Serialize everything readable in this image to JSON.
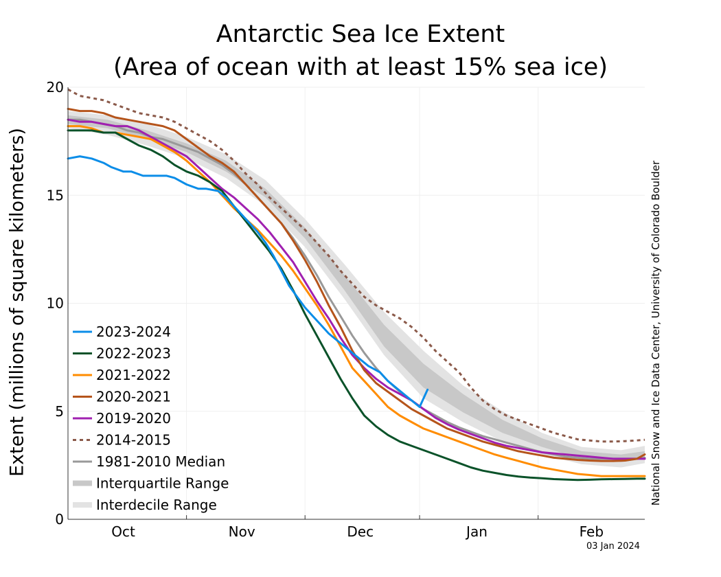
{
  "chart_data": {
    "type": "line",
    "title": "Antarctic Sea Ice Extent",
    "subtitle": "(Area of ocean with at least 15% sea ice)",
    "ylabel": "Extent (millions of square kilometers)",
    "xlabel": "",
    "ylim": [
      0,
      20
    ],
    "yticks": [
      "0",
      "5",
      "10",
      "15",
      "20"
    ],
    "xlim": [
      0,
      146
    ],
    "month_labels": [
      "Oct",
      "Nov",
      "Dec",
      "Jan",
      "Feb"
    ],
    "month_label_x": [
      14,
      44,
      74,
      103.5,
      132.5
    ],
    "month_boundaries": [
      30,
      60,
      89,
      119
    ],
    "grid": true,
    "legend_position": "lower-left",
    "credit": "National Snow and Ice Data Center, University of Colorado Boulder",
    "date": "03 Jan 2024",
    "bands": [
      {
        "name": "Interdecile Range",
        "color": "#e3e3e3",
        "x": [
          0,
          10,
          20,
          30,
          40,
          50,
          60,
          70,
          80,
          90,
          100,
          110,
          120,
          130,
          140,
          146
        ],
        "lower": [
          18.1,
          17.8,
          17.3,
          16.7,
          15.8,
          14.5,
          12.6,
          10.2,
          7.6,
          5.6,
          4.5,
          3.6,
          3.0,
          2.55,
          2.4,
          2.6
        ],
        "upper": [
          18.9,
          18.7,
          18.3,
          17.7,
          16.9,
          15.7,
          13.9,
          11.8,
          9.6,
          7.8,
          6.2,
          5.0,
          4.0,
          3.35,
          3.2,
          3.4
        ]
      },
      {
        "name": "Interquartile Range",
        "color": "#c8c8c8",
        "x": [
          0,
          10,
          20,
          30,
          40,
          50,
          60,
          70,
          80,
          90,
          100,
          110,
          120,
          130,
          140,
          146
        ],
        "lower": [
          18.3,
          18.1,
          17.6,
          17.0,
          16.1,
          14.9,
          13.0,
          10.6,
          8.0,
          6.1,
          4.95,
          4.0,
          3.35,
          2.8,
          2.65,
          2.8
        ],
        "upper": [
          18.7,
          18.5,
          18.0,
          17.4,
          16.6,
          15.3,
          13.5,
          11.3,
          9.0,
          7.2,
          5.8,
          4.6,
          3.75,
          3.15,
          3.0,
          3.15
        ]
      }
    ],
    "series": [
      {
        "name": "2023-2024",
        "color": "#0b8de8",
        "dash": "none",
        "x": [
          0,
          3,
          6,
          9,
          11,
          14,
          16,
          19,
          21,
          23,
          25,
          27,
          30,
          33,
          35,
          38,
          40,
          42,
          44,
          46,
          48,
          50,
          52,
          54,
          56,
          58,
          60,
          62,
          64,
          66,
          68,
          70,
          72,
          74,
          76,
          79,
          81,
          83,
          85,
          87,
          89,
          91
        ],
        "values": [
          16.7,
          16.8,
          16.7,
          16.5,
          16.3,
          16.1,
          16.1,
          15.9,
          15.9,
          15.9,
          15.9,
          15.8,
          15.5,
          15.3,
          15.3,
          15.2,
          14.9,
          14.5,
          14.1,
          13.7,
          13.3,
          12.8,
          12.2,
          11.5,
          10.8,
          10.3,
          9.8,
          9.4,
          9.0,
          8.6,
          8.3,
          8.0,
          7.7,
          7.4,
          7.1,
          6.8,
          6.4,
          6.1,
          5.8,
          5.5,
          5.2,
          6.0
        ]
      },
      {
        "name": "2022-2023",
        "color": "#0a5229",
        "dash": "none",
        "x": [
          0,
          3,
          6,
          9,
          12,
          15,
          18,
          21,
          24,
          27,
          30,
          33,
          36,
          39,
          42,
          45,
          48,
          51,
          54,
          57,
          60,
          63,
          66,
          69,
          72,
          75,
          78,
          81,
          84,
          87,
          90,
          93,
          96,
          99,
          102,
          105,
          108,
          111,
          114,
          117,
          120,
          123,
          126,
          129,
          132,
          135,
          138,
          141,
          144,
          146
        ],
        "values": [
          18.0,
          18.0,
          18.0,
          17.9,
          17.9,
          17.6,
          17.3,
          17.1,
          16.8,
          16.4,
          16.1,
          15.9,
          15.6,
          15.2,
          14.5,
          13.8,
          13.1,
          12.4,
          11.6,
          10.6,
          9.5,
          8.5,
          7.5,
          6.5,
          5.6,
          4.8,
          4.3,
          3.9,
          3.6,
          3.4,
          3.2,
          3.0,
          2.8,
          2.6,
          2.4,
          2.25,
          2.15,
          2.05,
          1.98,
          1.93,
          1.9,
          1.86,
          1.84,
          1.82,
          1.83,
          1.85,
          1.86,
          1.87,
          1.88,
          1.88
        ]
      },
      {
        "name": "2021-2022",
        "color": "#ff8c00",
        "dash": "none",
        "x": [
          0,
          3,
          6,
          9,
          12,
          15,
          18,
          21,
          24,
          27,
          30,
          33,
          36,
          39,
          42,
          45,
          48,
          51,
          54,
          57,
          60,
          63,
          66,
          69,
          72,
          75,
          78,
          81,
          84,
          87,
          90,
          93,
          96,
          99,
          102,
          105,
          108,
          111,
          114,
          117,
          120,
          123,
          126,
          129,
          132,
          135,
          138,
          141,
          144,
          146
        ],
        "values": [
          18.2,
          18.2,
          18.1,
          17.9,
          17.9,
          17.8,
          17.7,
          17.6,
          17.3,
          17.0,
          16.6,
          16.1,
          15.6,
          15.0,
          14.4,
          13.9,
          13.4,
          12.8,
          12.2,
          11.5,
          10.7,
          9.9,
          9.0,
          8.0,
          7.0,
          6.4,
          5.8,
          5.2,
          4.8,
          4.5,
          4.2,
          4.0,
          3.8,
          3.6,
          3.4,
          3.2,
          3.0,
          2.85,
          2.7,
          2.55,
          2.4,
          2.3,
          2.2,
          2.1,
          2.05,
          2.0,
          2.0,
          2.0,
          2.0,
          2.0
        ]
      },
      {
        "name": "2020-2021",
        "color": "#b5541b",
        "dash": "none",
        "x": [
          0,
          3,
          6,
          9,
          12,
          15,
          18,
          21,
          24,
          27,
          30,
          33,
          36,
          39,
          42,
          45,
          48,
          51,
          54,
          57,
          60,
          63,
          66,
          69,
          72,
          75,
          78,
          81,
          84,
          87,
          90,
          93,
          96,
          99,
          102,
          105,
          108,
          111,
          114,
          117,
          120,
          123,
          126,
          129,
          132,
          135,
          138,
          141,
          144,
          146
        ],
        "values": [
          19.0,
          18.9,
          18.9,
          18.8,
          18.6,
          18.5,
          18.4,
          18.3,
          18.2,
          18.0,
          17.6,
          17.2,
          16.8,
          16.5,
          16.1,
          15.5,
          14.9,
          14.3,
          13.7,
          12.9,
          12.0,
          11.0,
          9.9,
          8.9,
          7.8,
          6.9,
          6.3,
          5.9,
          5.5,
          5.1,
          4.8,
          4.5,
          4.2,
          4.0,
          3.8,
          3.6,
          3.45,
          3.3,
          3.15,
          3.05,
          2.95,
          2.85,
          2.8,
          2.75,
          2.72,
          2.7,
          2.7,
          2.72,
          2.8,
          3.0
        ]
      },
      {
        "name": "2019-2020",
        "color": "#a020b0",
        "dash": "none",
        "x": [
          0,
          3,
          6,
          9,
          12,
          15,
          18,
          21,
          24,
          27,
          30,
          33,
          36,
          39,
          42,
          45,
          48,
          51,
          54,
          57,
          60,
          63,
          66,
          69,
          72,
          75,
          78,
          81,
          84,
          87,
          90,
          93,
          96,
          99,
          102,
          105,
          108,
          111,
          114,
          117,
          120,
          123,
          126,
          129,
          132,
          135,
          138,
          141,
          144,
          146
        ],
        "values": [
          18.5,
          18.4,
          18.4,
          18.3,
          18.2,
          18.2,
          18.0,
          17.7,
          17.4,
          17.1,
          16.8,
          16.3,
          15.8,
          15.3,
          14.9,
          14.4,
          13.9,
          13.3,
          12.6,
          11.9,
          11.0,
          10.1,
          9.3,
          8.4,
          7.6,
          7.0,
          6.5,
          6.1,
          5.8,
          5.5,
          5.1,
          4.7,
          4.4,
          4.15,
          3.95,
          3.75,
          3.55,
          3.4,
          3.3,
          3.2,
          3.1,
          3.05,
          3.0,
          2.95,
          2.9,
          2.85,
          2.8,
          2.8,
          2.8,
          2.8
        ]
      },
      {
        "name": "2014-2015",
        "color": "#8b5a4a",
        "dash": "dotted",
        "x": [
          0,
          3,
          6,
          9,
          12,
          15,
          18,
          21,
          24,
          27,
          30,
          33,
          36,
          39,
          42,
          45,
          48,
          51,
          54,
          57,
          60,
          63,
          66,
          69,
          72,
          75,
          78,
          81,
          84,
          87,
          90,
          93,
          96,
          99,
          102,
          105,
          108,
          111,
          114,
          117,
          120,
          123,
          126,
          129,
          132,
          135,
          138,
          141,
          144,
          146
        ],
        "values": [
          19.9,
          19.6,
          19.5,
          19.4,
          19.2,
          19.0,
          18.8,
          18.7,
          18.6,
          18.4,
          18.1,
          17.8,
          17.5,
          17.1,
          16.6,
          16.0,
          15.5,
          14.9,
          14.4,
          13.9,
          13.4,
          12.8,
          12.2,
          11.5,
          10.9,
          10.3,
          9.9,
          9.6,
          9.3,
          8.9,
          8.4,
          7.8,
          7.3,
          6.8,
          6.1,
          5.5,
          5.1,
          4.8,
          4.6,
          4.4,
          4.2,
          4.0,
          3.85,
          3.7,
          3.65,
          3.6,
          3.6,
          3.62,
          3.65,
          3.68
        ]
      },
      {
        "name": "1981-2010 Median",
        "color": "#999999",
        "dash": "none",
        "x": [
          0,
          3,
          6,
          9,
          12,
          15,
          18,
          21,
          24,
          27,
          30,
          33,
          36,
          39,
          42,
          45,
          48,
          51,
          54,
          57,
          60,
          63,
          66,
          69,
          72,
          75,
          78,
          81,
          84,
          87,
          90,
          93,
          96,
          99,
          102,
          105,
          108,
          111,
          114,
          117,
          120,
          123,
          126,
          129,
          132,
          135,
          138,
          141,
          144,
          146
        ],
        "values": [
          18.5,
          18.5,
          18.4,
          18.3,
          18.2,
          18.0,
          17.9,
          17.7,
          17.6,
          17.4,
          17.2,
          17.0,
          16.7,
          16.4,
          16.0,
          15.5,
          14.9,
          14.3,
          13.7,
          13.0,
          12.2,
          11.3,
          10.3,
          9.4,
          8.5,
          7.7,
          7.0,
          6.4,
          5.9,
          5.5,
          5.1,
          4.8,
          4.5,
          4.25,
          4.05,
          3.85,
          3.7,
          3.55,
          3.4,
          3.25,
          3.1,
          3.0,
          2.9,
          2.85,
          2.8,
          2.8,
          2.8,
          2.8,
          2.8,
          2.85
        ]
      }
    ],
    "legend": [
      {
        "label": "2023-2024",
        "color": "#0b8de8",
        "style": "line"
      },
      {
        "label": "2022-2023",
        "color": "#0a5229",
        "style": "line"
      },
      {
        "label": "2021-2022",
        "color": "#ff8c00",
        "style": "line"
      },
      {
        "label": "2020-2021",
        "color": "#b5541b",
        "style": "line"
      },
      {
        "label": "2019-2020",
        "color": "#a020b0",
        "style": "line"
      },
      {
        "label": "2014-2015",
        "color": "#8b5a4a",
        "style": "dotted"
      },
      {
        "label": "1981-2010 Median",
        "color": "#999999",
        "style": "line"
      },
      {
        "label": "Interquartile Range",
        "color": "#c8c8c8",
        "style": "band"
      },
      {
        "label": "Interdecile Range",
        "color": "#e3e3e3",
        "style": "band"
      }
    ]
  }
}
